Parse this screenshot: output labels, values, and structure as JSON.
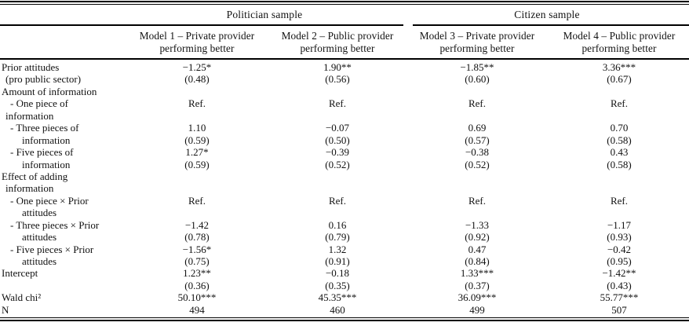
{
  "table": {
    "samples": [
      {
        "label": "Politician sample"
      },
      {
        "label": "Citizen sample"
      }
    ],
    "column_headers": [
      {
        "line1": "Model 1 – Private provider",
        "line2": "performing better"
      },
      {
        "line1": "Model 2 – Public provider",
        "line2": "performing better"
      },
      {
        "line1": "Model 3 – Private provider",
        "line2": "performing better"
      },
      {
        "line1": "Model 4 – Public provider",
        "line2": "performing better"
      }
    ],
    "rows": [
      {
        "label": "Prior attitudes",
        "indent": 0,
        "cells": [
          "−1.25*",
          "1.90**",
          "−1.85**",
          "3.36***"
        ]
      },
      {
        "label": "(pro public sector)",
        "indent": 1,
        "cells": [
          "(0.48)",
          "(0.56)",
          "(0.60)",
          "(0.67)"
        ]
      },
      {
        "label": "Amount of information",
        "indent": 0,
        "cells": [
          "",
          "",
          "",
          ""
        ]
      },
      {
        "label": "- One piece of",
        "indent": 2,
        "cells": [
          "Ref.",
          "Ref.",
          "Ref.",
          "Ref."
        ]
      },
      {
        "label": "information",
        "indent": 1,
        "cells": [
          "",
          "",
          "",
          ""
        ]
      },
      {
        "label": "- Three pieces of",
        "indent": 2,
        "cells": [
          "1.10",
          "−0.07",
          "0.69",
          "0.70"
        ]
      },
      {
        "label": "information",
        "indent": 3,
        "cells": [
          "(0.59)",
          "(0.50)",
          "(0.57)",
          "(0.58)"
        ]
      },
      {
        "label": "- Five pieces of",
        "indent": 2,
        "cells": [
          "1.27*",
          "−0.39",
          "−0.38",
          "0.43"
        ]
      },
      {
        "label": "information",
        "indent": 3,
        "cells": [
          "(0.59)",
          "(0.52)",
          "(0.52)",
          "(0.58)"
        ]
      },
      {
        "label": "Effect of adding",
        "indent": 0,
        "cells": [
          "",
          "",
          "",
          ""
        ]
      },
      {
        "label": "information",
        "indent": 1,
        "cells": [
          "",
          "",
          "",
          ""
        ]
      },
      {
        "label": "- One piece × Prior",
        "indent": 2,
        "cells": [
          "Ref.",
          "Ref.",
          "Ref.",
          "Ref."
        ]
      },
      {
        "label": "attitudes",
        "indent": 3,
        "cells": [
          "",
          "",
          "",
          ""
        ]
      },
      {
        "label": "- Three pieces × Prior",
        "indent": 2,
        "cells": [
          "−1.42",
          "0.16",
          "−1.33",
          "−1.17"
        ]
      },
      {
        "label": "attitudes",
        "indent": 3,
        "cells": [
          "(0.78)",
          "(0.79)",
          "(0.92)",
          "(0.93)"
        ]
      },
      {
        "label": "- Five pieces × Prior",
        "indent": 2,
        "cells": [
          "−1.56*",
          "1.32",
          "0.47",
          "−0.42"
        ]
      },
      {
        "label": "attitudes",
        "indent": 3,
        "cells": [
          "(0.75)",
          "(0.91)",
          "(0.84)",
          "(0.95)"
        ]
      },
      {
        "label": "Intercept",
        "indent": 0,
        "cells": [
          "1.23**",
          "−0.18",
          "1.33***",
          "−1.42**"
        ]
      },
      {
        "label": "",
        "indent": 0,
        "cells": [
          "(0.36)",
          "(0.35)",
          "(0.37)",
          "(0.43)"
        ]
      },
      {
        "label": "Wald chi²",
        "indent": 0,
        "cells": [
          "50.10***",
          "45.35***",
          "36.09***",
          "55.77***"
        ]
      },
      {
        "label": "N",
        "indent": 0,
        "cells": [
          "494",
          "460",
          "499",
          "507"
        ]
      }
    ]
  }
}
